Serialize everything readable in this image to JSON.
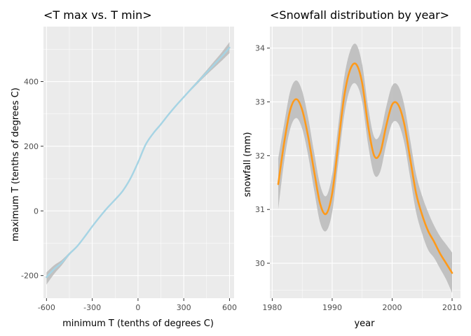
{
  "chart_data": [
    {
      "type": "line",
      "title": "<T max vs. T min>",
      "xlabel": "minimum T (tenths of degrees C)",
      "ylabel": "maximum T (tenths of degrees C)",
      "xlim": [
        -620,
        630
      ],
      "ylim": [
        -270,
        570
      ],
      "xticks": [
        -600,
        -300,
        0,
        300,
        600
      ],
      "xtick_labels": [
        "-600",
        "-300",
        "0",
        "300",
        "600"
      ],
      "yticks": [
        -200,
        0,
        200,
        400
      ],
      "ytick_labels": [
        "-200",
        "0",
        "200",
        "400"
      ],
      "grid": true,
      "legend": "none",
      "series": [
        {
          "color": "#a6d4e4",
          "band_color": "#bdbdbd",
          "points": [
            {
              "x": -600,
              "y": -205,
              "lo": -228,
              "hi": -190
            },
            {
              "x": -550,
              "y": -180,
              "lo": -195,
              "hi": -168
            },
            {
              "x": -500,
              "y": -160,
              "lo": -168,
              "hi": -152
            },
            {
              "x": -450,
              "y": -133,
              "lo": -137,
              "hi": -129
            },
            {
              "x": -400,
              "y": -110,
              "lo": -113,
              "hi": -107
            },
            {
              "x": -350,
              "y": -80,
              "lo": -83,
              "hi": -77
            },
            {
              "x": -300,
              "y": -48,
              "lo": -51,
              "hi": -45
            },
            {
              "x": -250,
              "y": -18,
              "lo": -21,
              "hi": -15
            },
            {
              "x": -200,
              "y": 10,
              "lo": 7,
              "hi": 13
            },
            {
              "x": -150,
              "y": 35,
              "lo": 32,
              "hi": 38
            },
            {
              "x": -100,
              "y": 62,
              "lo": 59,
              "hi": 65
            },
            {
              "x": -50,
              "y": 100,
              "lo": 97,
              "hi": 103
            },
            {
              "x": 0,
              "y": 150,
              "lo": 147,
              "hi": 153
            },
            {
              "x": 50,
              "y": 205,
              "lo": 202,
              "hi": 208
            },
            {
              "x": 100,
              "y": 240,
              "lo": 237,
              "hi": 243
            },
            {
              "x": 150,
              "y": 268,
              "lo": 265,
              "hi": 271
            },
            {
              "x": 200,
              "y": 298,
              "lo": 295,
              "hi": 301
            },
            {
              "x": 250,
              "y": 326,
              "lo": 323,
              "hi": 329
            },
            {
              "x": 300,
              "y": 352,
              "lo": 349,
              "hi": 355
            },
            {
              "x": 350,
              "y": 378,
              "lo": 374,
              "hi": 382
            },
            {
              "x": 400,
              "y": 403,
              "lo": 398,
              "hi": 408
            },
            {
              "x": 450,
              "y": 428,
              "lo": 421,
              "hi": 435
            },
            {
              "x": 500,
              "y": 453,
              "lo": 443,
              "hi": 463
            },
            {
              "x": 550,
              "y": 478,
              "lo": 465,
              "hi": 491
            },
            {
              "x": 600,
              "y": 505,
              "lo": 488,
              "hi": 522
            }
          ]
        }
      ]
    },
    {
      "type": "line",
      "title": "<Snowfall distribution by year>",
      "xlabel": "year",
      "ylabel": "snowfall (mm)",
      "xlim": [
        1979.6,
        2011.4
      ],
      "ylim": [
        29.35,
        34.4
      ],
      "xticks": [
        1980,
        1990,
        2000,
        2010
      ],
      "xtick_labels": [
        "1980",
        "1990",
        "2000",
        "2010"
      ],
      "yticks": [
        30,
        31,
        32,
        33,
        34
      ],
      "ytick_labels": [
        "30",
        "31",
        "32",
        "33",
        "34"
      ],
      "grid": true,
      "legend": "none",
      "series": [
        {
          "color": "#ff9a1a",
          "band_color": "#bdbdbd",
          "points": [
            {
              "x": 1981,
              "y": 31.47,
              "lo": 31.0,
              "hi": 31.95
            },
            {
              "x": 1982,
              "y": 32.25,
              "lo": 31.9,
              "hi": 32.6
            },
            {
              "x": 1983,
              "y": 32.85,
              "lo": 32.5,
              "hi": 33.2
            },
            {
              "x": 1984,
              "y": 33.05,
              "lo": 32.7,
              "hi": 33.4
            },
            {
              "x": 1985,
              "y": 32.85,
              "lo": 32.5,
              "hi": 33.2
            },
            {
              "x": 1986,
              "y": 32.35,
              "lo": 32.0,
              "hi": 32.7
            },
            {
              "x": 1987,
              "y": 31.7,
              "lo": 31.35,
              "hi": 32.05
            },
            {
              "x": 1988,
              "y": 31.1,
              "lo": 30.75,
              "hi": 31.45
            },
            {
              "x": 1989,
              "y": 30.92,
              "lo": 30.6,
              "hi": 31.25
            },
            {
              "x": 1990,
              "y": 31.3,
              "lo": 30.95,
              "hi": 31.65
            },
            {
              "x": 1991,
              "y": 32.2,
              "lo": 31.85,
              "hi": 32.55
            },
            {
              "x": 1992,
              "y": 33.1,
              "lo": 32.75,
              "hi": 33.45
            },
            {
              "x": 1993,
              "y": 33.6,
              "lo": 33.25,
              "hi": 33.95
            },
            {
              "x": 1994,
              "y": 33.7,
              "lo": 33.33,
              "hi": 34.07
            },
            {
              "x": 1995,
              "y": 33.35,
              "lo": 33.0,
              "hi": 33.7
            },
            {
              "x": 1996,
              "y": 32.55,
              "lo": 32.2,
              "hi": 32.9
            },
            {
              "x": 1997,
              "y": 32.0,
              "lo": 31.65,
              "hi": 32.35
            },
            {
              "x": 1998,
              "y": 32.05,
              "lo": 31.7,
              "hi": 32.4
            },
            {
              "x": 1999,
              "y": 32.55,
              "lo": 32.2,
              "hi": 32.9
            },
            {
              "x": 2000,
              "y": 32.95,
              "lo": 32.6,
              "hi": 33.3
            },
            {
              "x": 2001,
              "y": 32.95,
              "lo": 32.6,
              "hi": 33.3
            },
            {
              "x": 2002,
              "y": 32.6,
              "lo": 32.25,
              "hi": 32.95
            },
            {
              "x": 2003,
              "y": 31.95,
              "lo": 31.6,
              "hi": 32.3
            },
            {
              "x": 2004,
              "y": 31.3,
              "lo": 30.95,
              "hi": 31.65
            },
            {
              "x": 2005,
              "y": 30.9,
              "lo": 30.55,
              "hi": 31.25
            },
            {
              "x": 2006,
              "y": 30.6,
              "lo": 30.25,
              "hi": 30.95
            },
            {
              "x": 2007,
              "y": 30.4,
              "lo": 30.1,
              "hi": 30.7
            },
            {
              "x": 2008,
              "y": 30.18,
              "lo": 29.9,
              "hi": 30.5
            },
            {
              "x": 2009,
              "y": 30.0,
              "lo": 29.7,
              "hi": 30.35
            },
            {
              "x": 2010,
              "y": 29.82,
              "lo": 29.45,
              "hi": 30.2
            }
          ]
        }
      ]
    }
  ]
}
